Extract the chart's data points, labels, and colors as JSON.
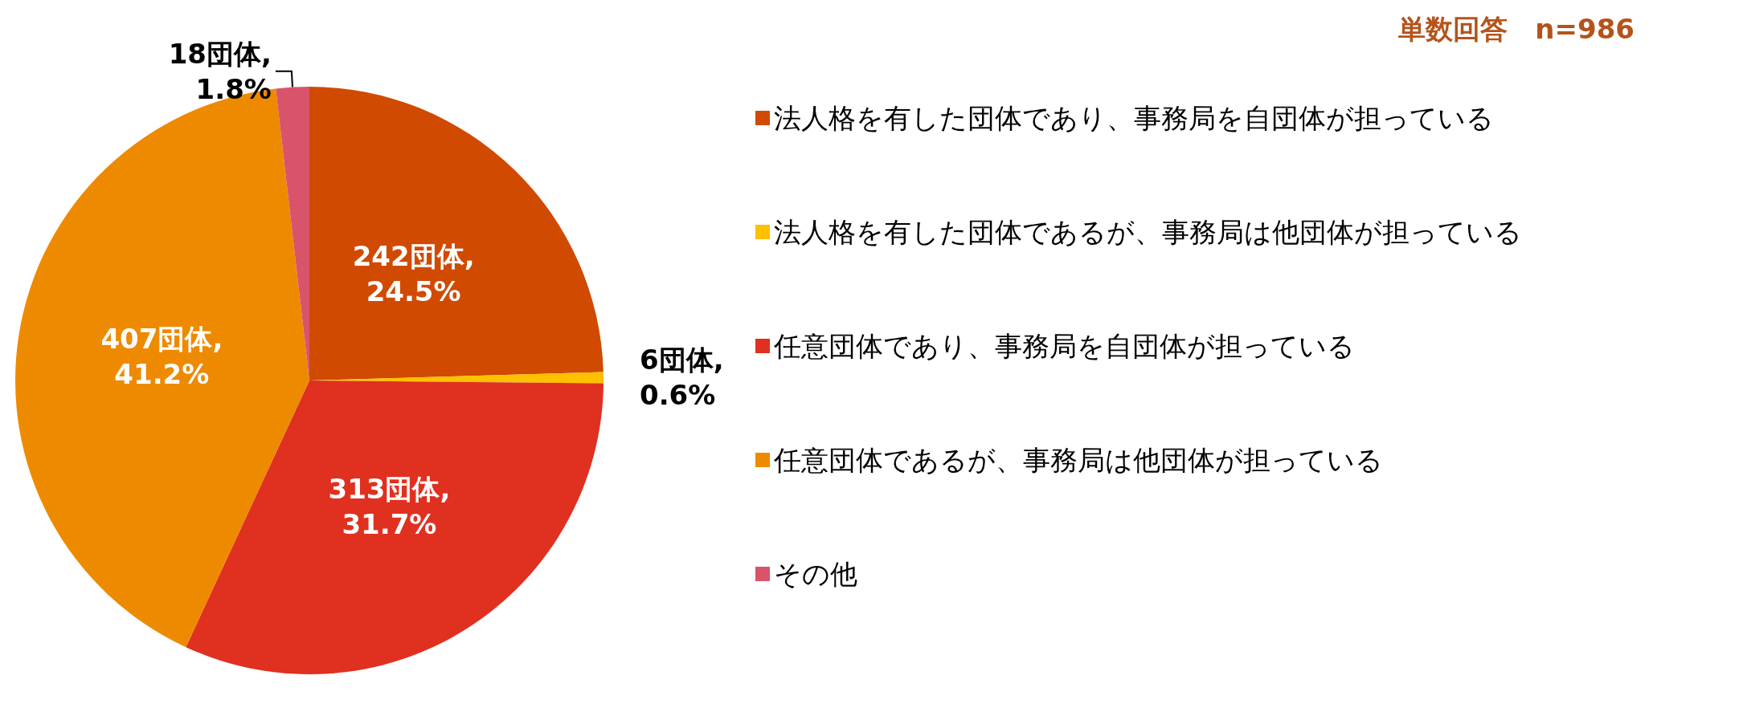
{
  "chart_data": {
    "type": "pie",
    "title": "単数回答　n=986",
    "categories": [
      "法人格を有した団体であり、事務局を自団体が担っている",
      "法人格を有した団体であるが、事務局は他団体が担っている",
      "任意団体であり、事務局を自団体が担っている",
      "任意団体であるが、事務局は他団体が担っている",
      "その他"
    ],
    "values": [
      242,
      6,
      313,
      407,
      18
    ],
    "value_labels": [
      "242団体,\n24.5%",
      "6団体,\n0.6%",
      "313団体,\n31.7%",
      "407団体,\n41.2%",
      "18団体,\n1.8%"
    ],
    "colors": [
      "#d04a02",
      "#ffc000",
      "#e03020",
      "#ee8a00",
      "#d9546a"
    ],
    "legend": "right"
  }
}
